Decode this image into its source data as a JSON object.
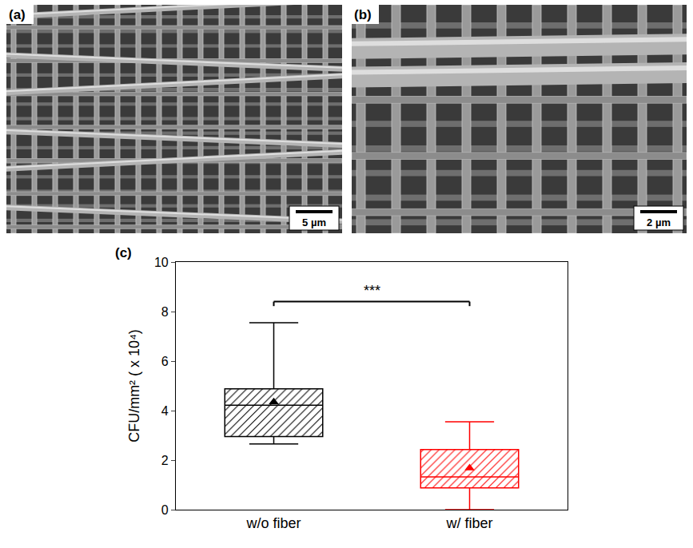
{
  "panels": [
    {
      "label": "(a)",
      "type": "image",
      "scale_bar": "5 µm"
    },
    {
      "label": "(b)",
      "type": "image",
      "scale_bar": "2 µm"
    }
  ],
  "chart_data": {
    "type": "box",
    "panel_label": "(c)",
    "y_label": "CFU/mm² ( x 10⁴)",
    "categories": [
      "w/o fiber",
      "w/ fiber"
    ],
    "lower_whisker": [
      2.65,
      0.0
    ],
    "q1": [
      2.95,
      0.88
    ],
    "median": [
      4.22,
      1.32
    ],
    "q3": [
      4.88,
      2.43
    ],
    "upper_whisker": [
      7.55,
      3.55
    ],
    "mean": [
      4.35,
      1.68
    ],
    "colors": [
      "#000000",
      "#ff0000"
    ],
    "marker": "triangle-up",
    "ylim": [
      0,
      10
    ],
    "yticks": [
      0,
      2,
      4,
      6,
      8,
      10
    ],
    "grid": false,
    "annotations": [
      {
        "text": "***",
        "from": 0,
        "to": 1
      }
    ]
  }
}
